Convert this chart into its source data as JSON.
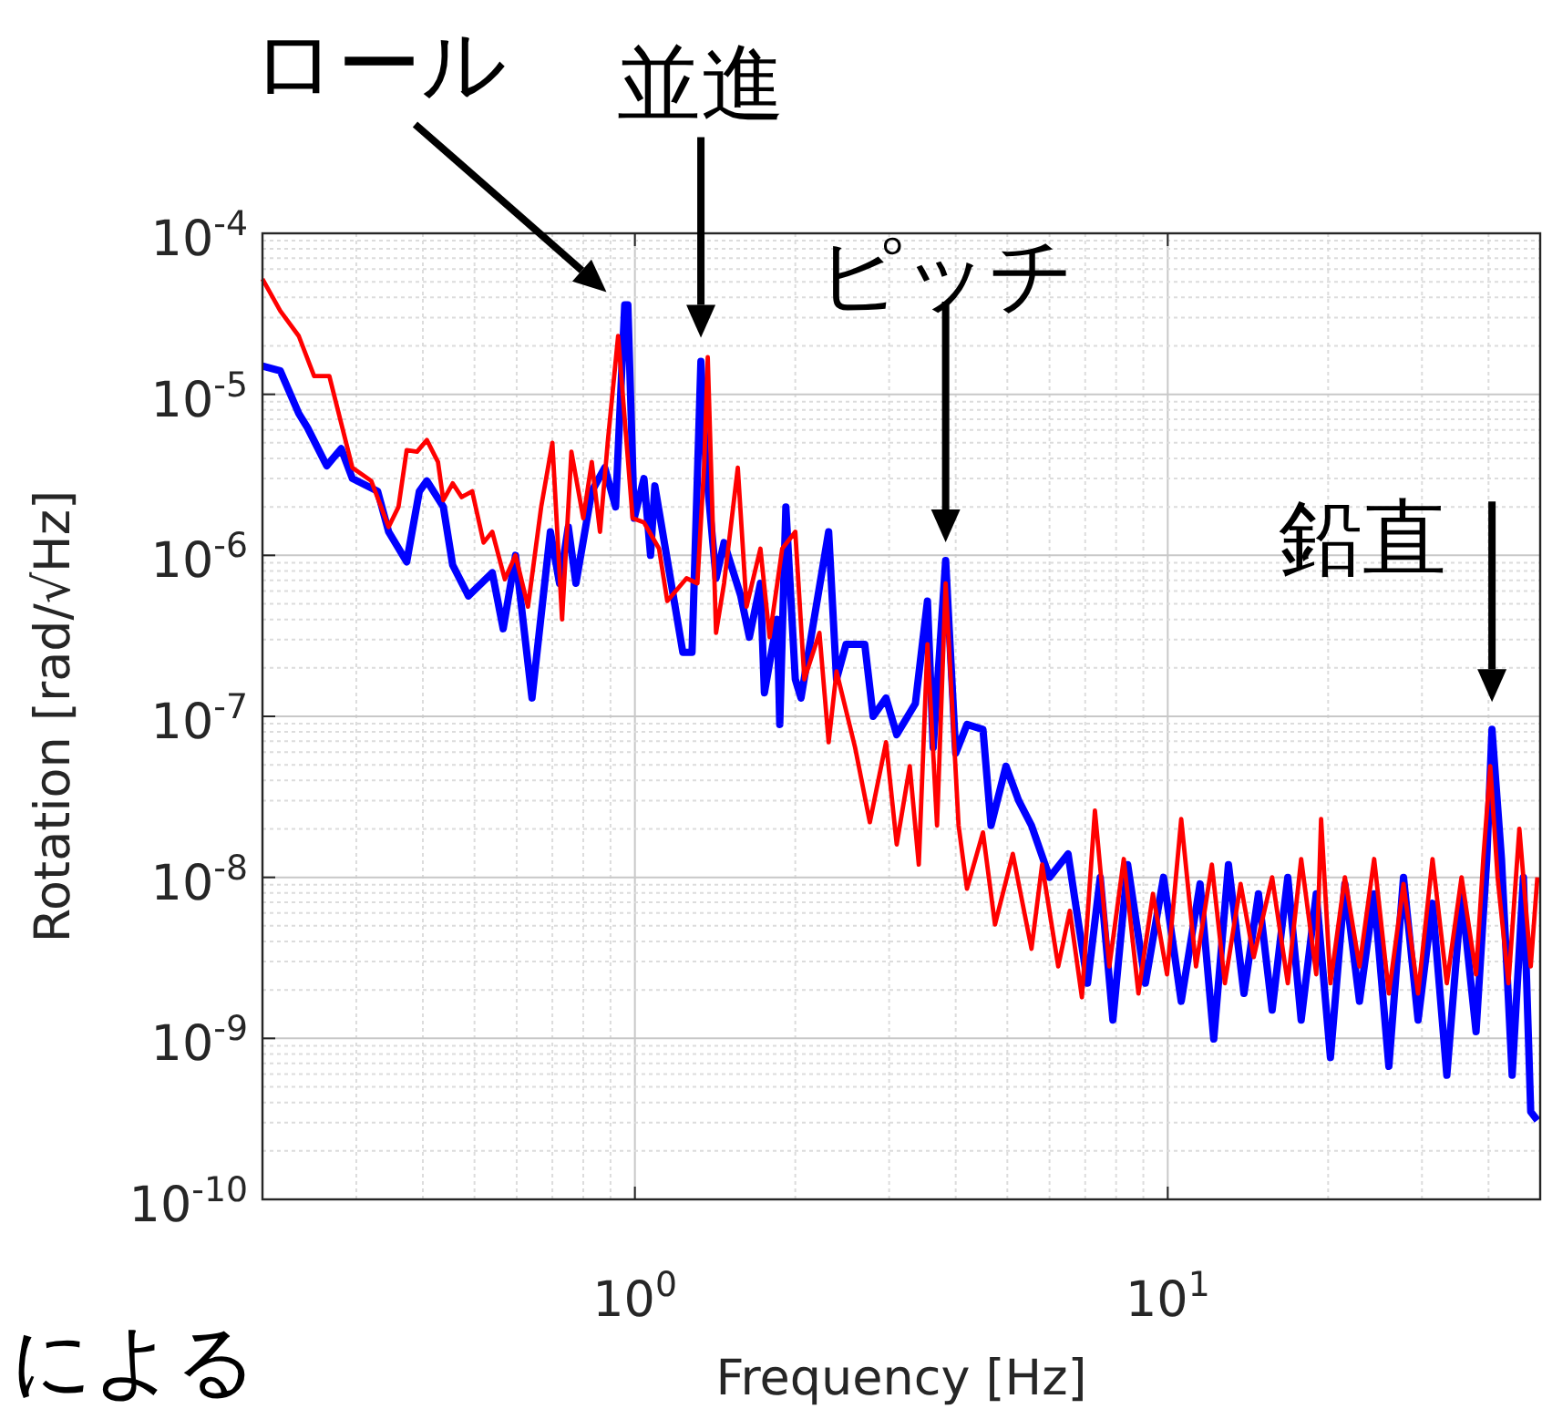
{
  "chart_data": {
    "type": "line",
    "xlabel": "Frequency [Hz]",
    "ylabel": "Rotation [rad/√Hz]",
    "log": "xy",
    "grid": true,
    "line_style": "solid",
    "xlim": [
      0.2,
      50
    ],
    "ylim": [
      1e-10,
      0.0001
    ],
    "xticks": [
      {
        "value": 1,
        "label": "10$^{0}$"
      },
      {
        "value": 10,
        "label": "10$^{1}$"
      }
    ],
    "yticks": [
      {
        "value": 1e-10,
        "label": "10$^{-10}$"
      },
      {
        "value": 1e-09,
        "label": "10$^{-9}$"
      },
      {
        "value": 1e-08,
        "label": "10$^{-8}$"
      },
      {
        "value": 1e-07,
        "label": "10$^{-7}$"
      },
      {
        "value": 1e-06,
        "label": "10$^{-6}$"
      },
      {
        "value": 1e-05,
        "label": "10$^{-5}$"
      },
      {
        "value": 0.0001,
        "label": "10$^{-4}$"
      }
    ],
    "series": [
      {
        "color": "#0000ff",
        "x": [
          0.2,
          0.216,
          0.234,
          0.243,
          0.264,
          0.281,
          0.295,
          0.329,
          0.345,
          0.373,
          0.394,
          0.407,
          0.437,
          0.455,
          0.487,
          0.54,
          0.566,
          0.597,
          0.641,
          0.694,
          0.722,
          0.75,
          0.775,
          0.83,
          0.878,
          0.92,
          0.957,
          0.97,
          0.997,
          1.04,
          1.07,
          1.09,
          1.15,
          1.23,
          1.28,
          1.33,
          1.36,
          1.42,
          1.47,
          1.58,
          1.64,
          1.72,
          1.75,
          1.85,
          1.87,
          1.92,
          2.0,
          2.05,
          2.16,
          2.31,
          2.39,
          2.49,
          2.7,
          2.8,
          2.96,
          3.1,
          3.36,
          3.54,
          3.63,
          3.83,
          4.0,
          4.2,
          4.5,
          4.66,
          4.97,
          5.25,
          5.55,
          6.0,
          6.5,
          7.07,
          7.47,
          7.89,
          8.41,
          9.08,
          9.82,
          10.6,
          11.5,
          12.2,
          13.0,
          13.9,
          14.8,
          15.7,
          16.8,
          17.8,
          19.0,
          20.2,
          21.5,
          22.9,
          24.4,
          26.0,
          27.7,
          29.5,
          31.4,
          33.4,
          35.6,
          37.9,
          39.7,
          40.6,
          42.3,
          44.3,
          46.5,
          48.0,
          49.4
        ],
        "values": [
          1.5e-05,
          1.4e-05,
          7.6e-06,
          6.2e-06,
          3.6e-06,
          4.6e-06,
          3e-06,
          2.5e-06,
          1.4e-06,
          9.1e-07,
          2.5e-06,
          2.9e-06,
          2e-06,
          8.7e-07,
          5.6e-07,
          7.8e-07,
          3.5e-07,
          1e-06,
          1.3e-07,
          1.4e-06,
          6.7e-07,
          1.5e-06,
          6.7e-07,
          2.5e-06,
          3.5e-06,
          2e-06,
          3.6e-05,
          3.6e-05,
          1.7e-06,
          3e-06,
          1e-06,
          2.7e-06,
          9.4e-07,
          2.5e-07,
          2.5e-07,
          1.6e-05,
          3.5e-06,
          7.2e-07,
          1.2e-06,
          5.6e-07,
          3.1e-07,
          6.7e-07,
          1.4e-07,
          4e-07,
          8.9e-08,
          2e-06,
          1.7e-07,
          1.3e-07,
          3.7e-07,
          1.4e-06,
          1.7e-07,
          2.8e-07,
          2.8e-07,
          1e-07,
          1.3e-07,
          7.7e-08,
          1.2e-07,
          5.2e-07,
          6.4e-08,
          9.3e-07,
          5.9e-08,
          8.9e-08,
          8.3e-08,
          2.1e-08,
          4.9e-08,
          3e-08,
          2.1e-08,
          1e-08,
          1.4e-08,
          2.2e-09,
          1e-08,
          1.3e-09,
          1.2e-08,
          2.2e-09,
          1e-08,
          1.7e-09,
          9.1e-09,
          9.9e-10,
          1.2e-08,
          1.9e-09,
          7.9e-09,
          1.5e-09,
          1e-08,
          1.3e-09,
          7.9e-09,
          7.6e-10,
          9.1e-09,
          1.7e-09,
          7.9e-09,
          6.7e-10,
          1e-08,
          1.3e-09,
          6.9e-09,
          5.9e-10,
          7.9e-09,
          1.1e-09,
          1.3e-08,
          8.3e-08,
          1.3e-08,
          5.9e-10,
          1e-08,
          3.5e-10,
          3.1e-10
        ]
      },
      {
        "color": "#ff0000",
        "x": [
          0.2,
          0.216,
          0.234,
          0.25,
          0.267,
          0.295,
          0.32,
          0.345,
          0.36,
          0.373,
          0.39,
          0.407,
          0.427,
          0.437,
          0.455,
          0.473,
          0.495,
          0.52,
          0.54,
          0.57,
          0.597,
          0.63,
          0.667,
          0.7,
          0.73,
          0.76,
          0.8,
          0.83,
          0.86,
          0.89,
          0.93,
          0.99,
          1.04,
          1.11,
          1.15,
          1.25,
          1.31,
          1.35,
          1.37,
          1.42,
          1.47,
          1.56,
          1.62,
          1.72,
          1.79,
          1.89,
          2.0,
          2.08,
          2.22,
          2.31,
          2.39,
          2.59,
          2.76,
          2.96,
          3.1,
          3.28,
          3.41,
          3.54,
          3.69,
          3.83,
          4.05,
          4.2,
          4.5,
          4.74,
          5.12,
          5.55,
          5.81,
          6.23,
          6.55,
          6.9,
          7.3,
          7.77,
          8.27,
          8.81,
          9.38,
          9.97,
          10.6,
          11.3,
          12.1,
          12.8,
          13.7,
          14.5,
          15.7,
          16.8,
          17.8,
          19.0,
          19.4,
          20.2,
          21.5,
          22.9,
          24.4,
          26.0,
          27.7,
          29.5,
          31.4,
          33.4,
          35.6,
          37.9,
          39.1,
          40.3,
          41.6,
          43.6,
          45.7,
          48.0,
          49.4
        ],
        "values": [
          5.2e-05,
          3.3e-05,
          2.3e-05,
          1.3e-05,
          1.3e-05,
          3.5e-06,
          2.9e-06,
          1.5e-06,
          2e-06,
          4.5e-06,
          4.4e-06,
          5.2e-06,
          3.8e-06,
          2.2e-06,
          2.8e-06,
          2.3e-06,
          2.5e-06,
          1.2e-06,
          1.4e-06,
          7.1e-07,
          1e-06,
          4.8e-07,
          2e-06,
          5e-06,
          4e-07,
          4.4e-06,
          1.7e-06,
          3.8e-06,
          1.4e-06,
          5.2e-06,
          2.3e-05,
          1.7e-06,
          1.6e-06,
          1.1e-06,
          5.2e-07,
          7.2e-07,
          6.7e-07,
          3.8e-06,
          1.7e-05,
          3.3e-07,
          6.7e-07,
          3.5e-06,
          4.8e-07,
          1.1e-06,
          3.1e-07,
          1.1e-06,
          1.4e-06,
          1.7e-07,
          3.3e-07,
          6.9e-08,
          1.9e-07,
          6.4e-08,
          2.2e-08,
          6.9e-08,
          1.6e-08,
          4.9e-08,
          1.2e-08,
          2.8e-07,
          2.1e-08,
          6.7e-07,
          2.1e-08,
          8.5e-09,
          1.9e-08,
          5.1e-09,
          1.4e-08,
          3.6e-09,
          1.2e-08,
          2.8e-09,
          6.2e-09,
          1.8e-09,
          2.6e-08,
          2.8e-09,
          1.3e-08,
          1.9e-09,
          7.9e-09,
          2.5e-09,
          2.3e-08,
          2.8e-09,
          1.2e-08,
          2.2e-09,
          9.1e-09,
          3.2e-09,
          1e-08,
          2.2e-09,
          1.3e-08,
          2.5e-09,
          2.3e-08,
          2.2e-09,
          1e-08,
          2.8e-09,
          1.3e-08,
          1.9e-09,
          9.1e-09,
          1.9e-09,
          1.3e-08,
          2.2e-09,
          1e-08,
          2.5e-09,
          1.3e-08,
          4.9e-08,
          1e-08,
          2.2e-09,
          2e-08,
          2.8e-09,
          1e-08
        ]
      }
    ],
    "annotations": [
      {
        "text": "ロール",
        "x": 0.957,
        "y": 3.6e-05
      },
      {
        "text": "並進",
        "x": 1.33,
        "y": 1.6e-05
      },
      {
        "text": "ピッチ",
        "x": 3.83,
        "y": 9.3e-07
      },
      {
        "text": "鉛直",
        "x": 40.6,
        "y": 8.3e-08
      },
      "による"
    ]
  }
}
